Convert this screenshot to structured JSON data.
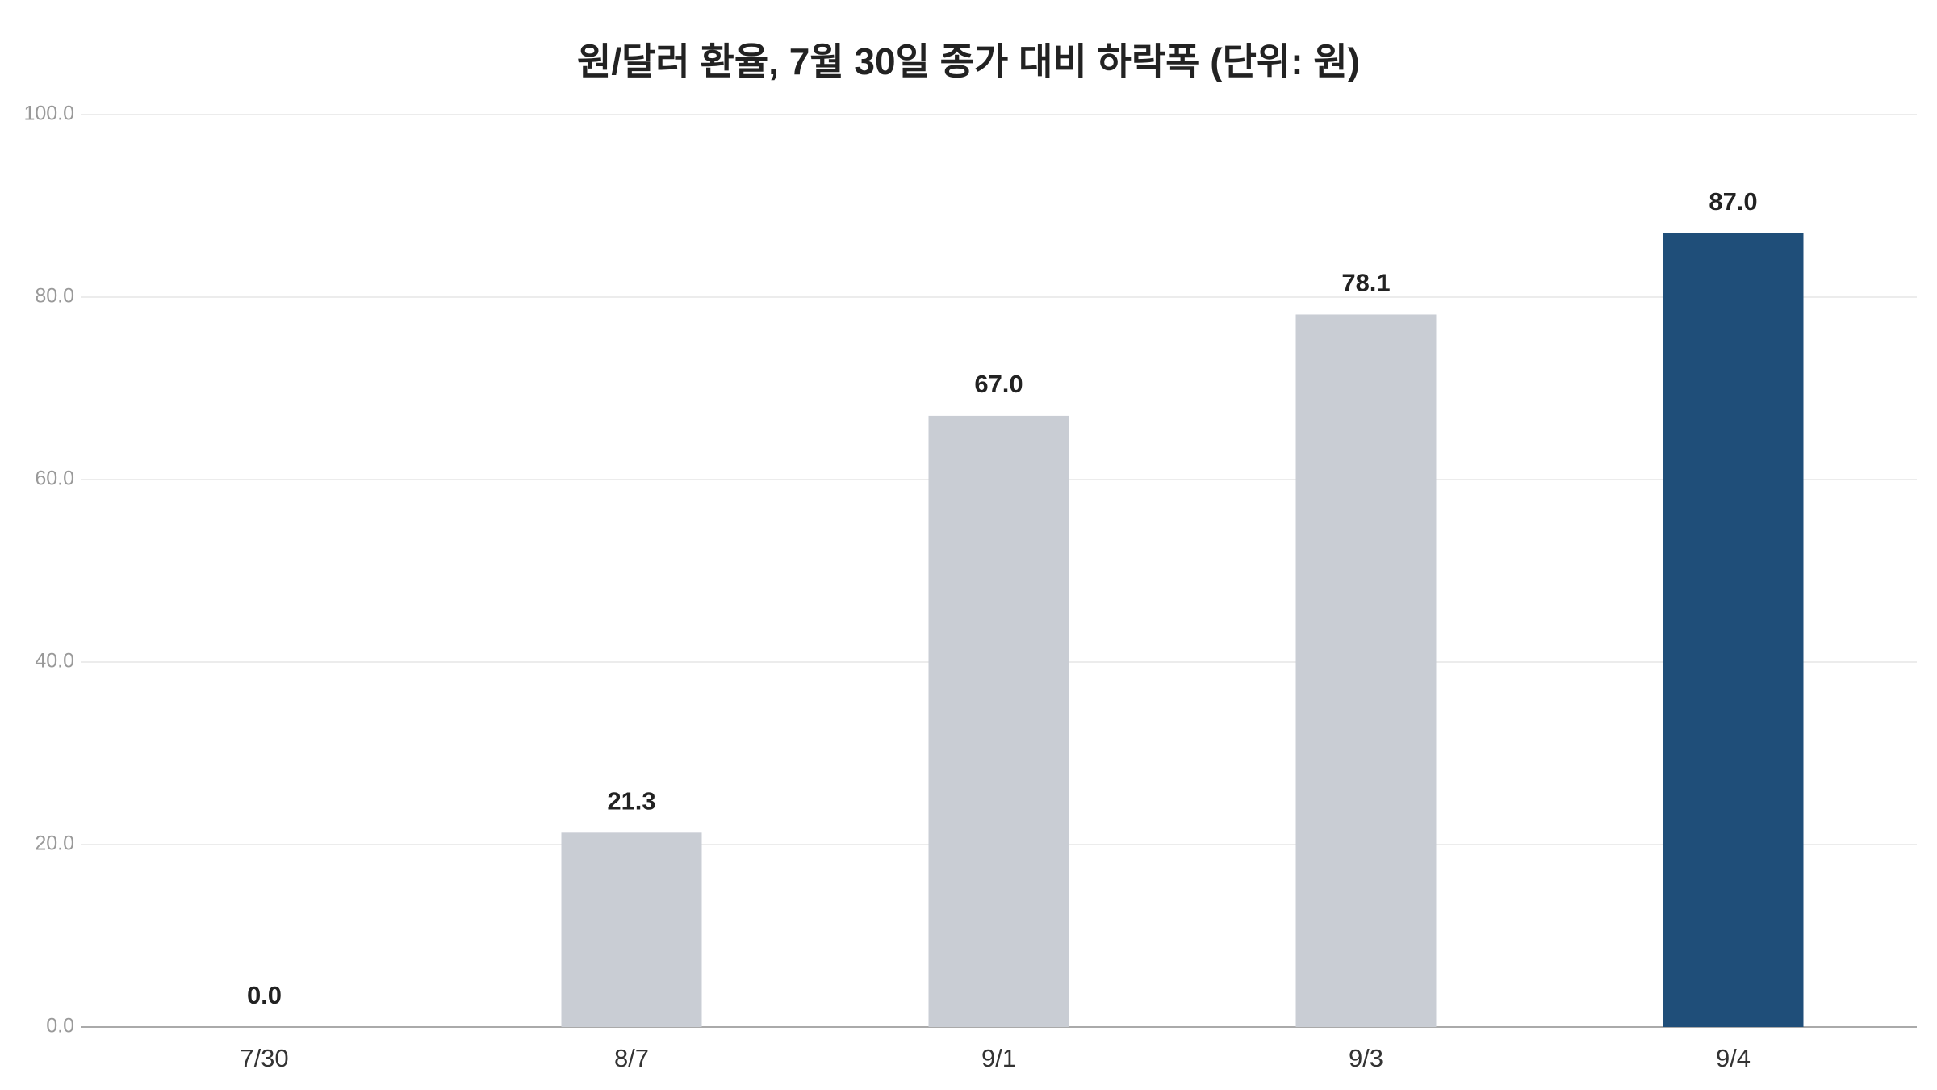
{
  "chart_data": {
    "type": "bar",
    "title": "원/달러 환율, 7월 30일 종가 대비 하락폭 (단위: 원)",
    "categories": [
      "7/30",
      "8/7",
      "9/1",
      "9/3",
      "9/4"
    ],
    "values": [
      0,
      21.3,
      67,
      78.1,
      87
    ],
    "value_labels": [
      "0.0",
      "21.3",
      "67.0",
      "78.1",
      "87.0"
    ],
    "colors": [
      "#c9cdd4",
      "#c9cdd4",
      "#c9cdd4",
      "#c9cdd4",
      "#1f4e79"
    ],
    "ylim": [
      0,
      100
    ],
    "yticks": [
      {
        "value": 0,
        "label": "0.0"
      },
      {
        "value": 20,
        "label": "20.0"
      },
      {
        "value": 40,
        "label": "40.0"
      },
      {
        "value": 60,
        "label": "60.0"
      },
      {
        "value": 80,
        "label": "80.0"
      },
      {
        "value": 100,
        "label": "100.0"
      }
    ],
    "grid": true
  }
}
